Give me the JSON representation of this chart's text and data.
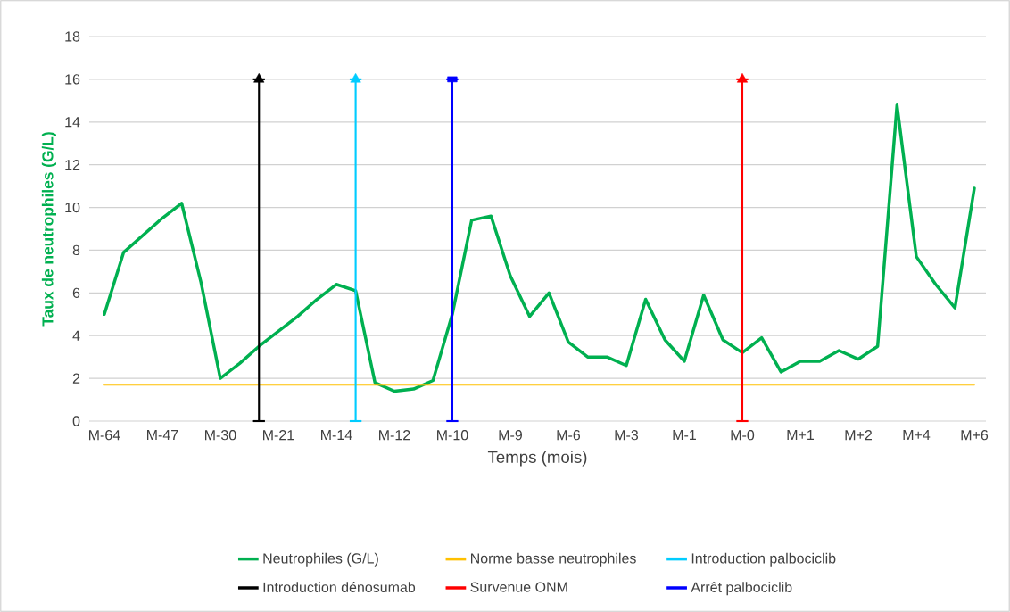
{
  "chart_data": {
    "type": "line",
    "xlabel": "Temps (mois)",
    "ylabel": "Taux de neutrophiles (G/L)",
    "categories": [
      "M-64",
      null,
      null,
      "M-47",
      null,
      null,
      "M-30",
      null,
      null,
      "M-21",
      null,
      null,
      "M-14",
      null,
      null,
      "M-12",
      null,
      null,
      "M-10",
      null,
      null,
      "M-9",
      null,
      null,
      "M-6",
      null,
      null,
      "M-3",
      null,
      null,
      "M-1",
      null,
      null,
      "M-0",
      null,
      null,
      "M+1",
      null,
      null,
      "M+2",
      null,
      null,
      "M+4",
      null,
      null,
      "M+6"
    ],
    "series": [
      {
        "name": "Neutrophiles (G/L)",
        "color": "#00b050",
        "values": [
          5.0,
          7.9,
          8.7,
          9.5,
          10.2,
          6.5,
          2.0,
          2.7,
          3.5,
          4.2,
          4.9,
          5.7,
          6.4,
          6.1,
          1.8,
          1.4,
          1.5,
          1.9,
          5.0,
          9.4,
          9.6,
          6.8,
          4.9,
          6.0,
          3.7,
          3.0,
          3.0,
          2.6,
          5.7,
          3.8,
          2.8,
          5.9,
          3.8,
          3.2,
          3.9,
          2.3,
          2.8,
          2.8,
          3.3,
          2.9,
          3.5,
          14.8,
          7.7,
          6.4,
          5.3,
          10.9
        ]
      },
      {
        "name": "Norme basse neutrophiles",
        "color": "#ffc000",
        "values": [
          1.7,
          1.7,
          1.7,
          1.7,
          1.7,
          1.7,
          1.7,
          1.7,
          1.7,
          1.7,
          1.7,
          1.7,
          1.7,
          1.7,
          1.7,
          1.7,
          1.7,
          1.7,
          1.7,
          1.7,
          1.7,
          1.7,
          1.7,
          1.7,
          1.7,
          1.7,
          1.7,
          1.7,
          1.7,
          1.7,
          1.7,
          1.7,
          1.7,
          1.7,
          1.7,
          1.7,
          1.7,
          1.7,
          1.7,
          1.7,
          1.7,
          1.7,
          1.7,
          1.7,
          1.7,
          1.7
        ]
      },
      {
        "name": "Introduction palbociclib",
        "color": "#00ccff",
        "marker": "triangle",
        "values": [
          null,
          null,
          null,
          null,
          null,
          null,
          null,
          null,
          null,
          null,
          null,
          null,
          null,
          16,
          null,
          null,
          null,
          null,
          null,
          null,
          null,
          null,
          null,
          null,
          null,
          null,
          null,
          null,
          null,
          null,
          null,
          null,
          null,
          null,
          null,
          null,
          null,
          null,
          null,
          null,
          null,
          null,
          null,
          null,
          null,
          null
        ],
        "errors": [
          null,
          null,
          null,
          null,
          null,
          null,
          null,
          null,
          null,
          null,
          null,
          null,
          null,
          [
            0,
            16
          ],
          null,
          null,
          null,
          null,
          null,
          null,
          null,
          null,
          null,
          null,
          null,
          null,
          null,
          null,
          null,
          null,
          null,
          null,
          null,
          null,
          null,
          null,
          null,
          null,
          null,
          null,
          null,
          null,
          null,
          null,
          null,
          null
        ]
      },
      {
        "name": "Introduction dénosumab",
        "color": "#000000",
        "marker": "triangle",
        "values": [
          null,
          null,
          null,
          null,
          null,
          null,
          null,
          null,
          16,
          null,
          null,
          null,
          null,
          null,
          null,
          null,
          null,
          null,
          null,
          null,
          null,
          null,
          null,
          null,
          null,
          null,
          null,
          null,
          null,
          null,
          null,
          null,
          null,
          null,
          null,
          null,
          null,
          null,
          null,
          null,
          null,
          null,
          null,
          null,
          null,
          null
        ],
        "errors": [
          null,
          null,
          null,
          null,
          null,
          null,
          null,
          null,
          [
            0,
            16
          ],
          null,
          null,
          null,
          null,
          null,
          null,
          null,
          null,
          null,
          null,
          null,
          null,
          null,
          null,
          null,
          null,
          null,
          null,
          null,
          null,
          null,
          null,
          null,
          null,
          null,
          null,
          null,
          null,
          null,
          null,
          null,
          null,
          null,
          null,
          null,
          null,
          null
        ]
      },
      {
        "name": "Survenue ONM",
        "color": "#ff0000",
        "marker": "triangle",
        "values": [
          null,
          null,
          null,
          null,
          null,
          null,
          null,
          null,
          null,
          null,
          null,
          null,
          null,
          null,
          null,
          null,
          null,
          null,
          null,
          null,
          null,
          null,
          null,
          null,
          null,
          null,
          null,
          null,
          null,
          null,
          null,
          null,
          null,
          16,
          null,
          null,
          null,
          null,
          null,
          null,
          null,
          null,
          null,
          null,
          null,
          null
        ],
        "errors": [
          null,
          null,
          null,
          null,
          null,
          null,
          null,
          null,
          null,
          null,
          null,
          null,
          null,
          null,
          null,
          null,
          null,
          null,
          null,
          null,
          null,
          null,
          null,
          null,
          null,
          null,
          null,
          null,
          null,
          null,
          null,
          null,
          null,
          [
            0,
            16
          ],
          null,
          null,
          null,
          null,
          null,
          null,
          null,
          null,
          null,
          null,
          null,
          null
        ]
      },
      {
        "name": "Arrêt palbociclib",
        "color": "#0000ff",
        "marker": "square",
        "values": [
          null,
          null,
          null,
          null,
          null,
          null,
          null,
          null,
          null,
          null,
          null,
          null,
          null,
          null,
          null,
          null,
          null,
          null,
          16,
          null,
          null,
          null,
          null,
          null,
          null,
          null,
          null,
          null,
          null,
          null,
          null,
          null,
          null,
          null,
          null,
          null,
          null,
          null,
          null,
          null,
          null,
          null,
          null,
          null,
          null,
          null
        ],
        "errors": [
          null,
          null,
          null,
          null,
          null,
          null,
          null,
          null,
          null,
          null,
          null,
          null,
          null,
          null,
          null,
          null,
          null,
          null,
          [
            0,
            16
          ],
          null,
          null,
          null,
          null,
          null,
          null,
          null,
          null,
          null,
          null,
          null,
          null,
          null,
          null,
          null,
          null,
          null,
          null,
          null,
          null,
          null,
          null,
          null,
          null,
          null,
          null,
          null
        ]
      }
    ],
    "ylim": [
      0,
      18
    ],
    "yticks": [
      0,
      2,
      4,
      6,
      8,
      10,
      12,
      14,
      16,
      18
    ],
    "grid": "y",
    "legend": "bottom"
  }
}
